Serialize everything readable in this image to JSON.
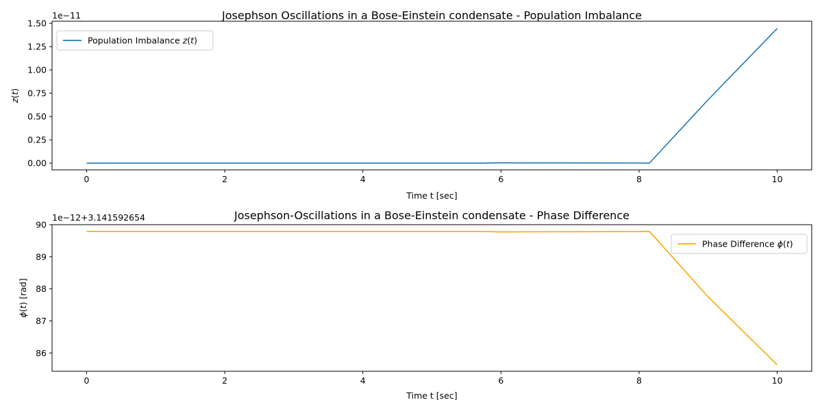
{
  "chart_data": [
    {
      "type": "line",
      "title": "Josephson Oscillations in a Bose-Einstein condensate - Population Imbalance",
      "xlabel": "Time t [sec]",
      "ylabel": "z(t)",
      "ylabel_parts": [
        "z",
        "(",
        "t",
        ")"
      ],
      "y_offset_label": "1e−11",
      "xlim": [
        -0.5,
        10.5
      ],
      "ylim": [
        -0.0725,
        1.5225
      ],
      "x_ticks": [
        0,
        2,
        4,
        6,
        8,
        10
      ],
      "x_tick_labels": [
        "0",
        "2",
        "4",
        "6",
        "8",
        "10"
      ],
      "y_ticks": [
        0,
        0.25,
        0.5,
        0.75,
        1.0,
        1.25,
        1.5
      ],
      "y_tick_labels": [
        "0.00",
        "0.25",
        "0.50",
        "0.75",
        "1.00",
        "1.25",
        "1.50"
      ],
      "legend_position": "upper-left",
      "grid": false,
      "series": [
        {
          "name": "Population Imbalance z(t)",
          "name_parts": [
            "Population Imbalance ",
            "z",
            "(",
            "t",
            ")"
          ],
          "color": "#1f77b4",
          "x": [
            0,
            1,
            2,
            3,
            4,
            5,
            5.7,
            6,
            7,
            8,
            8.15,
            9,
            10
          ],
          "y": [
            0,
            0,
            0,
            0,
            0,
            0,
            0,
            0.003,
            0.002,
            0.001,
            0,
            0.68,
            1.445
          ]
        }
      ]
    },
    {
      "type": "line",
      "title": "Josephson-Oscillations in a Bose-Einstein condensate - Phase Difference",
      "xlabel": "Time t [sec]",
      "ylabel": "ϕ(t) [rad]",
      "ylabel_parts": [
        "ϕ",
        "(",
        "t",
        ")",
        " [rad]"
      ],
      "y_offset_label": "1e−12+3.141592654",
      "xlim": [
        -0.5,
        10.5
      ],
      "ylim": [
        85.43,
        90.0
      ],
      "x_ticks": [
        0,
        2,
        4,
        6,
        8,
        10
      ],
      "x_tick_labels": [
        "0",
        "2",
        "4",
        "6",
        "8",
        "10"
      ],
      "y_ticks": [
        86,
        87,
        88,
        89,
        90
      ],
      "y_tick_labels": [
        "86",
        "87",
        "88",
        "89",
        "90"
      ],
      "legend_position": "upper-right",
      "grid": false,
      "series": [
        {
          "name": "Phase Difference ϕ(t)",
          "name_parts": [
            "Phase Difference ",
            "ϕ",
            "(",
            "t",
            ")"
          ],
          "color": "#ffa500",
          "x": [
            0,
            1,
            2,
            3,
            4,
            5,
            5.7,
            6,
            7,
            8,
            8.15,
            9,
            10
          ],
          "y": [
            89.79,
            89.79,
            89.79,
            89.79,
            89.79,
            89.79,
            89.79,
            89.775,
            89.78,
            89.785,
            89.79,
            87.75,
            85.63
          ]
        }
      ]
    }
  ]
}
